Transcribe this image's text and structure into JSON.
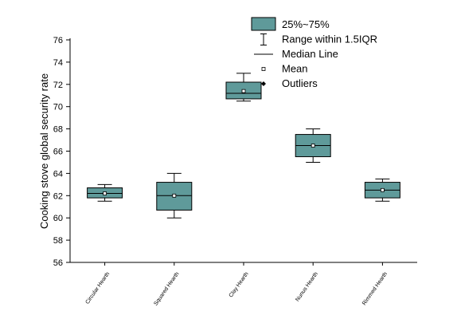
{
  "chart_data": {
    "type": "box",
    "ylabel": "Cooking stove global security rate",
    "xlabel": "",
    "ylim": [
      56,
      76
    ],
    "yticks": [
      56,
      58,
      60,
      62,
      64,
      66,
      68,
      70,
      72,
      74,
      76
    ],
    "categories": [
      "Circular Hearth",
      "Squared Hearth",
      "Clay Hearth",
      "Nunus Hearth",
      "Rimmed  Hearth"
    ],
    "boxes": [
      {
        "category": "Circular Hearth",
        "whisker_low": 61.5,
        "q1": 61.8,
        "median": 62.2,
        "mean": 62.2,
        "q3": 62.7,
        "whisker_high": 63.0
      },
      {
        "category": "Squared Hearth",
        "whisker_low": 60.0,
        "q1": 60.7,
        "median": 62.0,
        "mean": 62.0,
        "q3": 63.2,
        "whisker_high": 64.0
      },
      {
        "category": "Clay Hearth",
        "whisker_low": 70.5,
        "q1": 70.7,
        "median": 71.2,
        "mean": 71.4,
        "q3": 72.2,
        "whisker_high": 73.0
      },
      {
        "category": "Nunus Hearth",
        "whisker_low": 65.0,
        "q1": 65.5,
        "median": 66.5,
        "mean": 66.5,
        "q3": 67.5,
        "whisker_high": 68.0
      },
      {
        "category": "Rimmed  Hearth",
        "whisker_low": 61.5,
        "q1": 61.8,
        "median": 62.5,
        "mean": 62.5,
        "q3": 63.2,
        "whisker_high": 63.5
      }
    ],
    "box_color": "#5f9a9a",
    "grid": false,
    "legend_position": "top-right",
    "legend": {
      "box": "25%~75%",
      "range": "Range within 1.5IQR",
      "median": "Median Line",
      "mean": "Mean",
      "outliers": "Outliers"
    }
  }
}
